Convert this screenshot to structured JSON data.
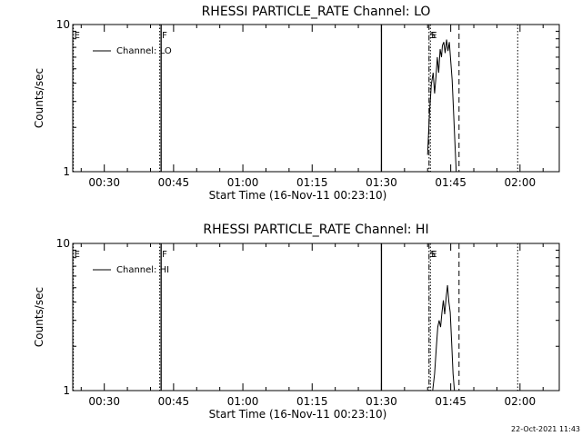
{
  "footer": {
    "timestamp": "22-Oct-2021 11:43"
  },
  "chart_data": [
    {
      "type": "line",
      "title": "RHESSI PARTICLE_RATE Channel: LO",
      "xlabel": "Start Time (16-Nov-11 00:23:10)",
      "ylabel": "Counts/sec",
      "yscale": "log",
      "ylim": [
        1,
        10
      ],
      "xlim_minutes": [
        23.17,
        128.5
      ],
      "x_ticks": [
        {
          "t": 30,
          "label": "00:30"
        },
        {
          "t": 45,
          "label": "00:45"
        },
        {
          "t": 60,
          "label": "01:00"
        },
        {
          "t": 75,
          "label": "01:15"
        },
        {
          "t": 90,
          "label": "01:30"
        },
        {
          "t": 105,
          "label": "01:45"
        },
        {
          "t": 120,
          "label": "02:00"
        }
      ],
      "y_ticks": [
        {
          "v": 1,
          "label": "1"
        },
        {
          "v": 10,
          "label": "10"
        }
      ],
      "legend": {
        "label": "Channel: LO",
        "position": "top-left"
      },
      "flags": [
        {
          "t": 23.3,
          "label": "E",
          "style": "dotted"
        },
        {
          "t": 42.0,
          "label": "",
          "style": "dotted"
        },
        {
          "t": 42.3,
          "label": "F",
          "style": "solid"
        },
        {
          "t": 90.0,
          "label": "",
          "style": "solid"
        },
        {
          "t": 100.3,
          "label": "S",
          "style": "dashdot"
        },
        {
          "t": 100.6,
          "label": "E",
          "style": "dotted"
        },
        {
          "t": 106.8,
          "label": "",
          "style": "dashed"
        },
        {
          "t": 119.5,
          "label": "",
          "style": "dotted"
        }
      ],
      "series": [
        {
          "name": "",
          "x": [
            100.0,
            100.4,
            100.8,
            101.2,
            101.5,
            101.8,
            102.1,
            102.4,
            102.7,
            103.0,
            103.2,
            103.5,
            103.8,
            104.1,
            104.4,
            104.7,
            105.0,
            105.3,
            105.6,
            105.9,
            106.2
          ],
          "y": [
            1.3,
            2.5,
            3.9,
            4.7,
            3.4,
            4.4,
            6.0,
            4.7,
            6.8,
            6.0,
            7.2,
            7.6,
            6.4,
            7.9,
            6.6,
            7.6,
            5.7,
            4.2,
            2.6,
            1.6,
            1.0
          ]
        }
      ]
    },
    {
      "type": "line",
      "title": "RHESSI PARTICLE_RATE Channel: HI",
      "xlabel": "Start Time (16-Nov-11 00:23:10)",
      "ylabel": "Counts/sec",
      "yscale": "log",
      "ylim": [
        1,
        10
      ],
      "xlim_minutes": [
        23.17,
        128.5
      ],
      "x_ticks": [
        {
          "t": 30,
          "label": "00:30"
        },
        {
          "t": 45,
          "label": "00:45"
        },
        {
          "t": 60,
          "label": "01:00"
        },
        {
          "t": 75,
          "label": "01:15"
        },
        {
          "t": 90,
          "label": "01:30"
        },
        {
          "t": 105,
          "label": "01:45"
        },
        {
          "t": 120,
          "label": "02:00"
        }
      ],
      "y_ticks": [
        {
          "v": 1,
          "label": "1"
        },
        {
          "v": 10,
          "label": "10"
        }
      ],
      "legend": {
        "label": "Channel: HI",
        "position": "top-left"
      },
      "flags": [
        {
          "t": 23.3,
          "label": "E",
          "style": "dotted"
        },
        {
          "t": 42.0,
          "label": "",
          "style": "dotted"
        },
        {
          "t": 42.3,
          "label": "F",
          "style": "solid"
        },
        {
          "t": 90.0,
          "label": "",
          "style": "solid"
        },
        {
          "t": 100.3,
          "label": "S",
          "style": "dashdot"
        },
        {
          "t": 100.6,
          "label": "E",
          "style": "dotted"
        },
        {
          "t": 106.8,
          "label": "",
          "style": "dashed"
        },
        {
          "t": 119.5,
          "label": "",
          "style": "dotted"
        }
      ],
      "series": [
        {
          "name": "",
          "x": [
            101.1,
            101.5,
            101.9,
            102.2,
            102.5,
            102.8,
            103.1,
            103.4,
            103.7,
            104.0,
            104.3,
            104.6,
            104.9,
            105.2,
            105.5,
            105.8
          ],
          "y": [
            1.0,
            1.3,
            2.0,
            2.7,
            3.0,
            2.7,
            3.4,
            4.1,
            3.3,
            4.3,
            5.2,
            4.0,
            3.4,
            2.1,
            1.3,
            1.0
          ]
        }
      ]
    }
  ]
}
